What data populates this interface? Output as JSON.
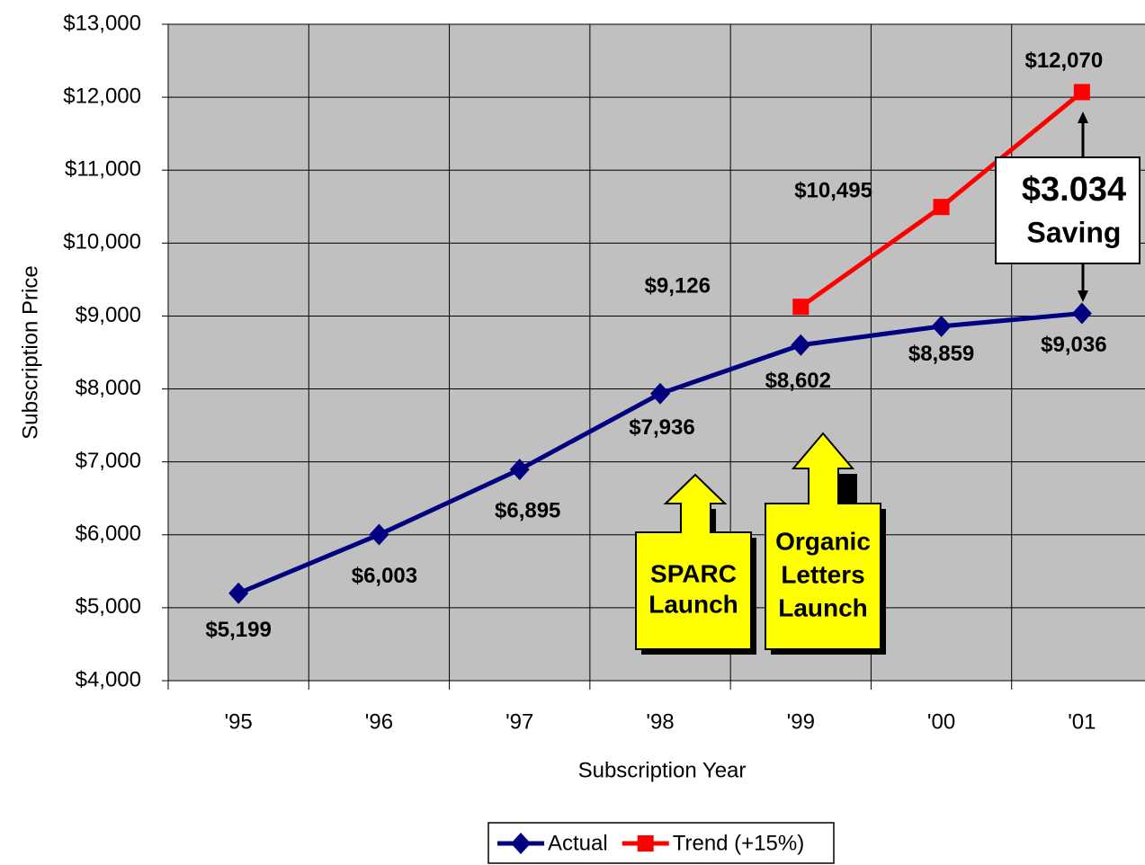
{
  "chart_data": {
    "type": "line",
    "x_label": "Subscription Year",
    "y_label": "Subscription Price",
    "categories": [
      "'95",
      "'96",
      "'97",
      "'98",
      "'99",
      "'00",
      "'01"
    ],
    "series": [
      {
        "name": "Actual",
        "color": "#000080",
        "values": [
          5199,
          6003,
          6895,
          7936,
          8602,
          8859,
          9036
        ],
        "value_labels": [
          "$5,199",
          "$6,003",
          "$6,895",
          "$7,936",
          "$8,602",
          "$8,859",
          "$9,036"
        ]
      },
      {
        "name": "Trend (+15%)",
        "color": "#ff0000",
        "values": [
          null,
          null,
          null,
          null,
          9126,
          10495,
          12070
        ],
        "value_labels": [
          null,
          null,
          null,
          null,
          "$9,126",
          "$10,495",
          "$12,070"
        ]
      }
    ],
    "ylim": [
      4000,
      13000
    ],
    "yticks": [
      {
        "value": 4000,
        "label": "$4,000"
      },
      {
        "value": 5000,
        "label": "$5,000"
      },
      {
        "value": 6000,
        "label": "$6,000"
      },
      {
        "value": 7000,
        "label": "$7,000"
      },
      {
        "value": 8000,
        "label": "$8,000"
      },
      {
        "value": 9000,
        "label": "$9,000"
      },
      {
        "value": 10000,
        "label": "$10,000"
      },
      {
        "value": 11000,
        "label": "$11,000"
      },
      {
        "value": 12000,
        "label": "$12,000"
      },
      {
        "value": 13000,
        "label": "$13,000"
      }
    ],
    "grid": true,
    "legend": "bottom",
    "annotations": [
      {
        "lines": [
          "SPARC",
          "Launch"
        ]
      },
      {
        "lines": [
          "Organic",
          "Letters",
          "Launch"
        ]
      },
      {
        "lines": [
          "$3.034",
          "Saving"
        ]
      }
    ]
  }
}
